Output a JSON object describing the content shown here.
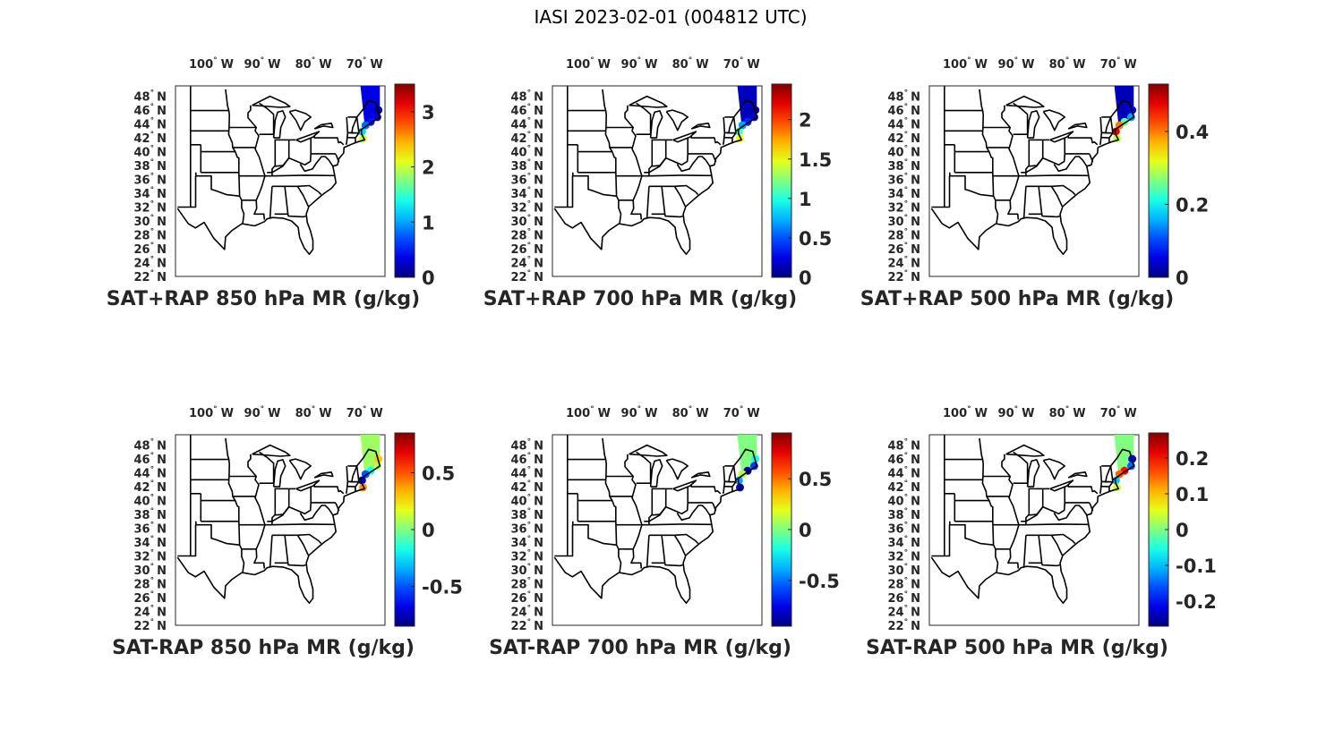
{
  "figure": {
    "title": "IASI 2023-02-01 (004812 UTC)"
  },
  "map_axes": {
    "lon_labels": [
      "100",
      "90",
      "80",
      "70"
    ],
    "lon_values": [
      -100,
      -90,
      -80,
      -70
    ],
    "lon_hemisphere": "W",
    "lat_labels": [
      "48",
      "46",
      "44",
      "42",
      "40",
      "38",
      "36",
      "34",
      "32",
      "30",
      "28",
      "26",
      "24",
      "22"
    ],
    "lat_values": [
      48,
      46,
      44,
      42,
      40,
      38,
      36,
      34,
      32,
      30,
      28,
      26,
      24,
      22
    ],
    "lat_hemisphere": "N",
    "lon_range": [
      -107,
      -66
    ],
    "lat_range": [
      22,
      49.5
    ],
    "degree_symbol": "°"
  },
  "colormap": "jet",
  "panels": [
    {
      "title": "SAT+RAP 850 hPa MR (g/kg)",
      "clim": [
        0,
        3.5
      ],
      "ticks": [
        "0",
        "1",
        "2",
        "3"
      ],
      "tick_values": [
        0,
        1,
        2,
        3
      ],
      "swath_value": 0.35,
      "coast_values": [
        0.1,
        0.3,
        0.5,
        0.8,
        1.2,
        2.0
      ]
    },
    {
      "title": "SAT+RAP 700 hPa MR (g/kg)",
      "clim": [
        0,
        2.45
      ],
      "ticks": [
        "0",
        "0.5",
        "1",
        "1.5",
        "2"
      ],
      "tick_values": [
        0,
        0.5,
        1,
        1.5,
        2
      ],
      "swath_value": 0.15,
      "coast_values": [
        0.05,
        0.2,
        0.4,
        0.7,
        1.1,
        1.5
      ]
    },
    {
      "title": "SAT+RAP 500 hPa MR (g/kg)",
      "clim": [
        0,
        0.53
      ],
      "ticks": [
        "0",
        "0.2",
        "0.4"
      ],
      "tick_values": [
        0,
        0.2,
        0.4
      ],
      "swath_value": 0.03,
      "coast_values": [
        0.05,
        0.15,
        0.25,
        0.4,
        0.47,
        0.3
      ]
    },
    {
      "title": "SAT-RAP 850 hPa MR (g/kg)",
      "clim": [
        -0.85,
        0.85
      ],
      "ticks": [
        "-0.5",
        "0",
        "0.5"
      ],
      "tick_values": [
        -0.5,
        0,
        0.5
      ],
      "swath_value": 0.05,
      "coast_values": [
        0.3,
        0.1,
        -0.2,
        -0.5,
        -0.7,
        0.4
      ]
    },
    {
      "title": "SAT-RAP 700 hPa MR (g/kg)",
      "clim": [
        -0.95,
        0.95
      ],
      "ticks": [
        "-0.5",
        "0",
        "0.5"
      ],
      "tick_values": [
        -0.5,
        0,
        0.5
      ],
      "swath_value": 0.0,
      "coast_values": [
        -0.2,
        -0.6,
        -0.9,
        0.1,
        -0.4,
        -0.8
      ]
    },
    {
      "title": "SAT-RAP 500 hPa MR (g/kg)",
      "clim": [
        -0.27,
        0.27
      ],
      "ticks": [
        "-0.2",
        "-0.1",
        "0",
        "0.1",
        "0.2"
      ],
      "tick_values": [
        -0.2,
        -0.1,
        0,
        0.1,
        0.2
      ],
      "swath_value": 0.0,
      "coast_values": [
        -0.22,
        -0.15,
        0.2,
        0.15,
        -0.1,
        0.05
      ]
    }
  ]
}
